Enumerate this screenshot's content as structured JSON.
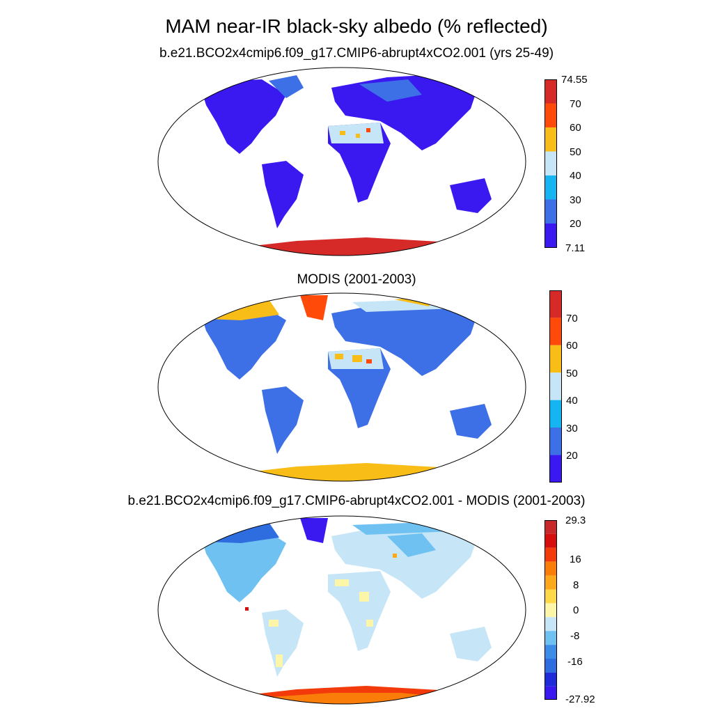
{
  "figure": {
    "title": "MAM near-IR black-sky albedo (% reflected)"
  },
  "panels": [
    {
      "title": "b.e21.BCO2x4cmip6.f09_g17.CMIP6-abrupt4xCO2.001 (yrs 25-49)",
      "colorbar": {
        "colors": [
          "#3a18f0",
          "#3d6fe6",
          "#16b5f2",
          "#c6e6f7",
          "#f9bd17",
          "#ff4a0a",
          "#d62a28"
        ],
        "labels": [
          "74.55",
          "70",
          "60",
          "50",
          "40",
          "30",
          "20",
          "7.11"
        ]
      }
    },
    {
      "title": "MODIS (2001-2003)",
      "colorbar": {
        "colors": [
          "#3a18f0",
          "#3d6fe6",
          "#16b5f2",
          "#c6e6f7",
          "#f9bd17",
          "#ff4a0a",
          "#d62a28"
        ],
        "labels": [
          "70",
          "60",
          "50",
          "40",
          "30",
          "20"
        ]
      }
    },
    {
      "title": "b.e21.BCO2x4cmip6.f09_g17.CMIP6-abrupt4xCO2.001 - MODIS (2001-2003)",
      "colorbar": {
        "colors": [
          "#3a18f0",
          "#1f2ad8",
          "#2e6de0",
          "#3d8ce8",
          "#6fc1f2",
          "#c6e6f7",
          "#fdf5a8",
          "#fdd94a",
          "#fba81a",
          "#fa7d0a",
          "#f23a0a",
          "#d60d0d",
          "#c8282a"
        ],
        "labels": [
          "29.3",
          "16",
          "8",
          "0",
          "-8",
          "-16",
          "-27.92"
        ]
      }
    }
  ]
}
